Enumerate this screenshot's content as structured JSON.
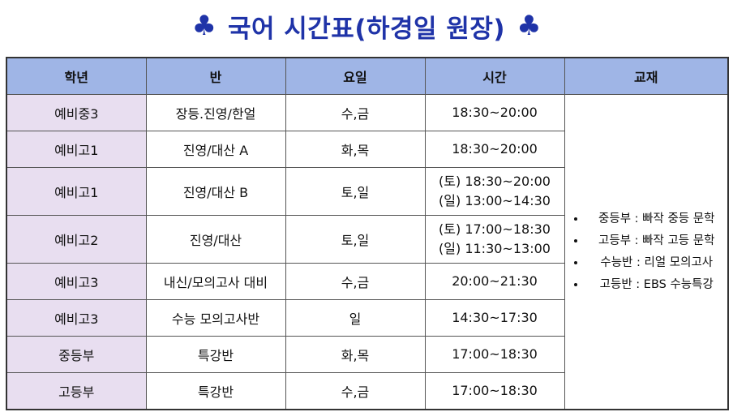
{
  "header": {
    "title": "국어 시간표(하경일 원장)",
    "left_icon": "club-icon",
    "right_icon": "club-icon",
    "accent": "#1f33a8"
  },
  "table": {
    "columns": [
      "학년",
      "반",
      "요일",
      "시간",
      "교재"
    ],
    "header_color": "#9fb5e6",
    "grade_color": "#e8def0",
    "rows": [
      {
        "grade": "예비중3",
        "class": "장등.진영/한얼",
        "days": "수,금",
        "time": [
          "18:30~20:00"
        ]
      },
      {
        "grade": "예비고1",
        "class": "진영/대산 A",
        "days": "화,목",
        "time": [
          "18:30~20:00"
        ]
      },
      {
        "grade": "예비고1",
        "class": "진영/대산 B",
        "days": "토,일",
        "time": [
          "(토) 18:30~20:00",
          "(일) 13:00~14:30"
        ]
      },
      {
        "grade": "예비고2",
        "class": "진영/대산",
        "days": "토,일",
        "time": [
          "(토) 17:00~18:30",
          "(일) 11:30~13:00"
        ]
      },
      {
        "grade": "예비고3",
        "class": "내신/모의고사 대비",
        "days": "수,금",
        "time": [
          "20:00~21:30"
        ]
      },
      {
        "grade": "예비고3",
        "class": "수능 모의고사반",
        "days": "일",
        "time": [
          "14:30~17:30"
        ]
      },
      {
        "grade": "중등부",
        "class": "특강반",
        "days": "화,목",
        "time": [
          "17:00~18:30"
        ]
      },
      {
        "grade": "고등부",
        "class": "특강반",
        "days": "수,금",
        "time": [
          "17:00~18:30"
        ]
      }
    ],
    "materials": [
      "중등부 : 빠작 중등 문학",
      "고등부 : 빠작 고등 문학",
      "수능반 : 리얼 모의고사",
      "고등반 : EBS 수능특강"
    ]
  }
}
